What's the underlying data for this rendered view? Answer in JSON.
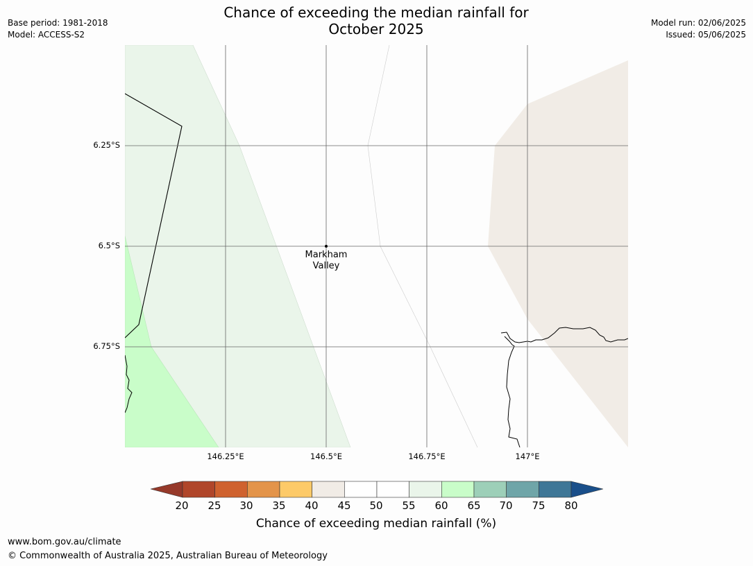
{
  "title_line1": "Chance of exceeding the median rainfall for",
  "title_line2": "October 2025",
  "meta_left": {
    "base_period": "Base period: 1981-2018",
    "model": "Model: ACCESS-S2"
  },
  "meta_right": {
    "model_run": "Model run: 02/06/2025",
    "issued": "Issued: 05/06/2025"
  },
  "map": {
    "lat_labels": [
      "6.25°S",
      "6.5°S",
      "6.75°S"
    ],
    "lon_labels": [
      "146.25°E",
      "146.5°E",
      "146.75°E",
      "147°E"
    ],
    "place": {
      "name_line1": "Markham",
      "name_line2": "Valley"
    }
  },
  "colorbar": {
    "ticks": [
      "20",
      "25",
      "30",
      "35",
      "40",
      "45",
      "50",
      "55",
      "60",
      "65",
      "70",
      "75",
      "80"
    ],
    "colors": [
      "#b0462a",
      "#cf622f",
      "#e3944a",
      "#fdca68",
      "#f1ece6",
      "#ffffff",
      "#ffffff",
      "#eaf5ea",
      "#c9fdc9",
      "#9dcfb8",
      "#6fa5a8",
      "#3f7797"
    ],
    "low_color": "#96392a",
    "high_color": "#1a4f8a",
    "label": "Chance of exceeding median rainfall (%)"
  },
  "footer": {
    "url": "www.bom.gov.au/climate",
    "copyright": "© Commonwealth of Australia 2025, Australian Bureau of Meteorology"
  }
}
